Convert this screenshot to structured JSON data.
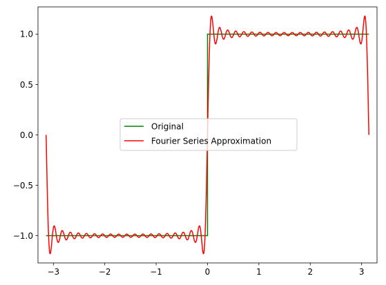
{
  "chart_data": {
    "type": "line",
    "title": "",
    "xlabel": "",
    "ylabel": "",
    "xlim": [
      -3.3,
      3.3
    ],
    "ylim": [
      -1.27,
      1.27
    ],
    "grid": false,
    "legend_placement": "center",
    "x_ticks": [
      {
        "value": -3,
        "label": "−3"
      },
      {
        "value": -2,
        "label": "−2"
      },
      {
        "value": -1,
        "label": "−1"
      },
      {
        "value": 0,
        "label": "0"
      },
      {
        "value": 1,
        "label": "1"
      },
      {
        "value": 2,
        "label": "2"
      },
      {
        "value": 3,
        "label": "3"
      }
    ],
    "y_ticks": [
      {
        "value": -1.0,
        "label": "−1.0"
      },
      {
        "value": -0.5,
        "label": "−0.5"
      },
      {
        "value": 0.0,
        "label": "0.0"
      },
      {
        "value": 0.5,
        "label": "0.5"
      },
      {
        "value": 1.0,
        "label": "1.0"
      }
    ],
    "x_domain": [
      -3.14159,
      3.14159
    ],
    "series": [
      {
        "name": "Original",
        "color": "#008000",
        "function": "square_wave",
        "x": [
          -3.14159,
          0,
          0,
          3.14159
        ],
        "y": [
          -1,
          -1,
          1,
          1
        ]
      },
      {
        "name": "Fourier Series Approximation",
        "color": "#ff0000",
        "function": "fourier_square_wave_odd_harmonics",
        "harmonics_max": 39
      }
    ]
  }
}
